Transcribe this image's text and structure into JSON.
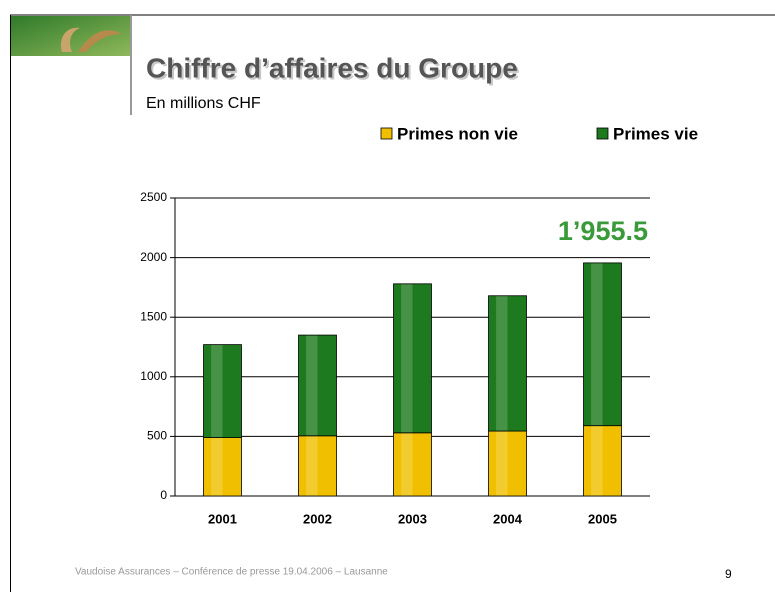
{
  "header": {
    "title": "Chiffre d’affaires du Groupe",
    "subtitle": "En millions CHF"
  },
  "chart_data": {
    "type": "stacked_bar",
    "categories": [
      "2001",
      "2002",
      "2003",
      "2004",
      "2005"
    ],
    "series": [
      {
        "name": "Primes non vie",
        "color": "#f0c000",
        "values": [
          490,
          505,
          530,
          545,
          590
        ]
      },
      {
        "name": "Primes vie",
        "color": "#1e7a1e",
        "values": [
          780,
          845,
          1250,
          1135,
          1365.5
        ]
      }
    ],
    "ylim": [
      0,
      2500
    ],
    "yticks": [
      0,
      500,
      1000,
      1500,
      2000,
      2500
    ],
    "grid": true,
    "annotation": "1’955.5",
    "annotation_color": "#3a9a3a"
  },
  "footer": {
    "text": "Vaudoise Assurances – Conférence de presse 19.04.2006 – Lausanne",
    "page": "9"
  }
}
